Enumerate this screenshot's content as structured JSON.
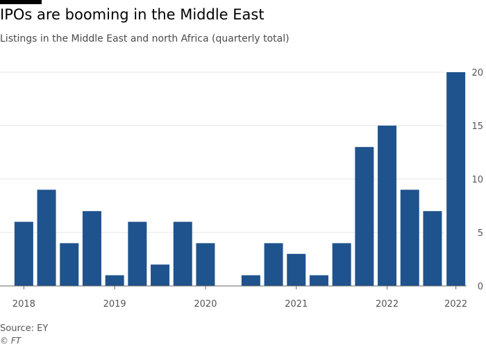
{
  "title": "IPOs are booming in the Middle East",
  "subtitle": "Listings in the Middle East and north Africa (quarterly total)",
  "source": "Source: EY",
  "credit": "© FT",
  "colors": {
    "bar": "#1f538d",
    "grid": "#e6e6e6",
    "axis": "#666666",
    "tick_text": "#555555"
  },
  "chart_data": {
    "type": "bar",
    "title": "IPOs are booming in the Middle East",
    "subtitle": "Listings in the Middle East and north Africa (quarterly total)",
    "categories": [
      "2018 Q1",
      "2018 Q2",
      "2018 Q3",
      "2018 Q4",
      "2019 Q1",
      "2019 Q2",
      "2019 Q3",
      "2019 Q4",
      "2020 Q1",
      "2020 Q2",
      "2020 Q3",
      "2020 Q4",
      "2021 Q1",
      "2021 Q2",
      "2021 Q3",
      "2021 Q4",
      "2022 Q1",
      "2022 Q2",
      "2022 Q3",
      "2022 Q4"
    ],
    "values": [
      6,
      9,
      4,
      7,
      1,
      6,
      2,
      6,
      4,
      0,
      1,
      4,
      3,
      1,
      4,
      13,
      15,
      9,
      7,
      20
    ],
    "x_tick_labels": [
      {
        "label": "2018",
        "index": 0
      },
      {
        "label": "2019",
        "index": 4
      },
      {
        "label": "2020",
        "index": 8
      },
      {
        "label": "2021",
        "index": 12
      },
      {
        "label": "2022",
        "index": 16
      },
      {
        "label": "2022",
        "index": 19
      }
    ],
    "y_ticks": [
      0,
      5,
      10,
      15,
      20
    ],
    "ylim": [
      0,
      20
    ],
    "y_axis_side": "right",
    "grid": true,
    "xlabel": "",
    "ylabel": ""
  }
}
